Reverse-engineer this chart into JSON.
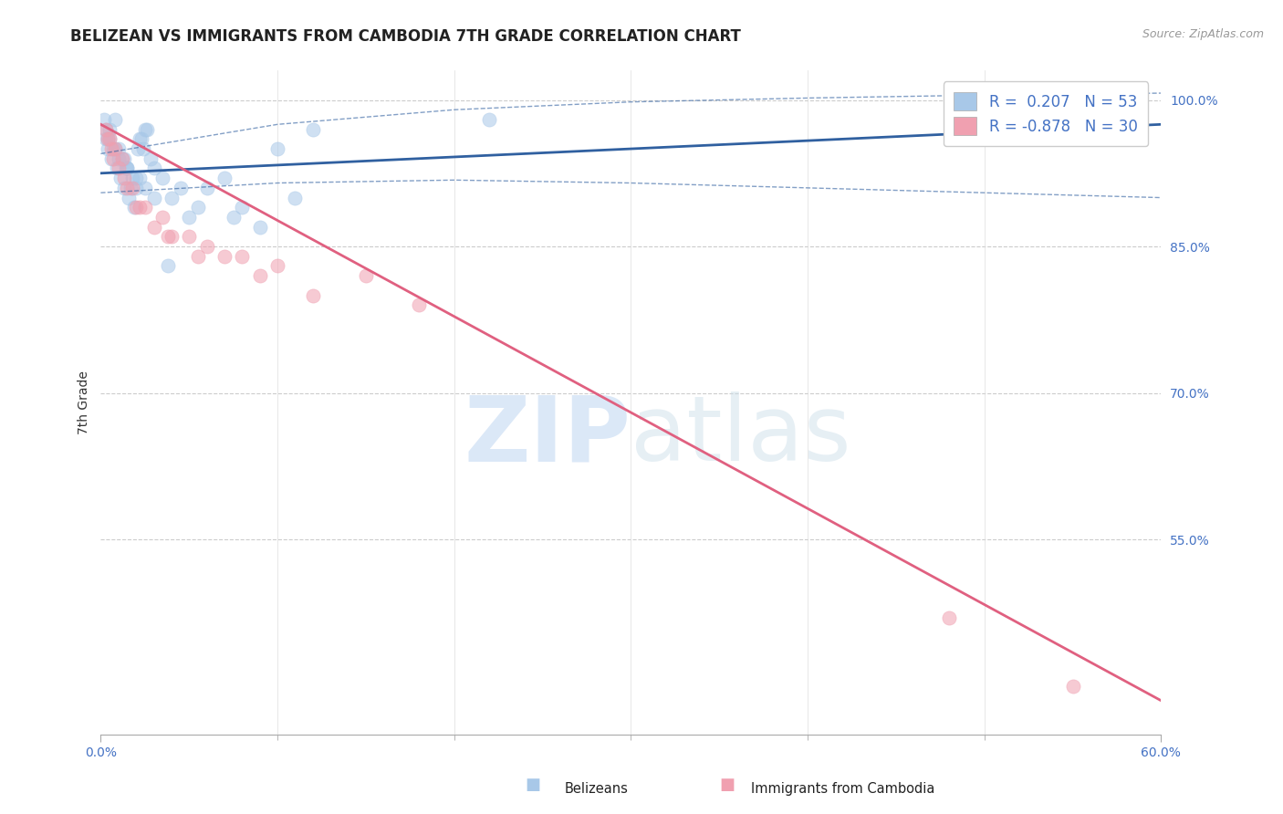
{
  "title": "BELIZEAN VS IMMIGRANTS FROM CAMBODIA 7TH GRADE CORRELATION CHART",
  "source": "Source: ZipAtlas.com",
  "ylabel": "7th Grade",
  "R_blue": 0.207,
  "N_blue": 53,
  "R_pink": -0.878,
  "N_pink": 30,
  "legend_label_blue": "Belizeans",
  "legend_label_pink": "Immigrants from Cambodia",
  "blue_color": "#a8c8e8",
  "blue_line_color": "#3060a0",
  "pink_color": "#f0a0b0",
  "pink_line_color": "#e06080",
  "blue_scatter_x": [
    0.3,
    0.5,
    0.8,
    1.0,
    1.2,
    1.5,
    1.8,
    2.0,
    2.2,
    2.5,
    0.4,
    0.6,
    0.9,
    1.1,
    1.3,
    1.6,
    1.9,
    2.1,
    2.3,
    2.6,
    0.2,
    0.7,
    1.4,
    1.7,
    2.4,
    2.8,
    3.0,
    3.5,
    4.0,
    5.0,
    6.0,
    7.0,
    8.0,
    10.0,
    12.0,
    0.3,
    0.5,
    0.8,
    1.0,
    1.5,
    2.0,
    2.5,
    3.0,
    4.5,
    5.5,
    7.5,
    9.0,
    11.0,
    0.4,
    1.3,
    2.2,
    3.8,
    22.0
  ],
  "blue_scatter_y": [
    96,
    97,
    98,
    95,
    94,
    93,
    92,
    91,
    96,
    97,
    95,
    94,
    93,
    92,
    91,
    90,
    89,
    95,
    96,
    97,
    98,
    95,
    93,
    91,
    95,
    94,
    93,
    92,
    90,
    88,
    91,
    92,
    89,
    95,
    97,
    97,
    96,
    95,
    94,
    93,
    92,
    91,
    90,
    91,
    89,
    88,
    87,
    90,
    96,
    94,
    92,
    83,
    98
  ],
  "pink_scatter_x": [
    0.3,
    0.5,
    0.8,
    1.2,
    1.8,
    2.5,
    3.5,
    5.0,
    7.0,
    10.0,
    15.0,
    0.4,
    0.7,
    1.0,
    1.5,
    2.0,
    3.0,
    4.0,
    6.0,
    8.0,
    12.0,
    0.6,
    1.3,
    2.2,
    3.8,
    5.5,
    9.0,
    18.0,
    48.0,
    55.0
  ],
  "pink_scatter_y": [
    97,
    96,
    95,
    94,
    91,
    89,
    88,
    86,
    84,
    83,
    82,
    96,
    94,
    93,
    91,
    89,
    87,
    86,
    85,
    84,
    80,
    95,
    92,
    89,
    86,
    84,
    82,
    79,
    47,
    40
  ],
  "blue_line_x0": 0.0,
  "blue_line_x1": 60.0,
  "blue_line_y0": 92.5,
  "blue_line_y1": 97.5,
  "blue_conf_upper_x": [
    0.0,
    10.0,
    20.0,
    30.0,
    40.0,
    50.0,
    60.0
  ],
  "blue_conf_upper_y": [
    94.5,
    97.5,
    99.0,
    99.8,
    100.2,
    100.5,
    100.7
  ],
  "blue_conf_lower_x": [
    0.0,
    10.0,
    20.0,
    30.0,
    40.0,
    50.0,
    60.0
  ],
  "blue_conf_lower_y": [
    90.5,
    91.5,
    91.8,
    91.5,
    91.0,
    90.5,
    90.0
  ],
  "pink_line_x0": 0.0,
  "pink_line_x1": 60.0,
  "pink_line_y0": 97.5,
  "pink_line_y1": 38.5,
  "watermark_zip": "ZIP",
  "watermark_atlas": "atlas",
  "background_color": "#ffffff",
  "grid_color": "#cccccc",
  "right_ytick_vals": [
    100.0,
    85.0,
    70.0,
    55.0
  ],
  "xlim": [
    0.0,
    60.0
  ],
  "ylim": [
    35.0,
    103.0
  ],
  "title_fontsize": 12,
  "source_fontsize": 9
}
